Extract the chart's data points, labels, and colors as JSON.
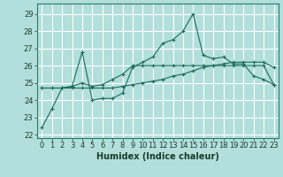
{
  "title": "",
  "xlabel": "Humidex (Indice chaleur)",
  "background_color": "#b2dfdb",
  "line_color": "#1a6b5a",
  "grid_color": "#e8f5f3",
  "xlim": [
    -0.5,
    23.5
  ],
  "ylim": [
    21.8,
    29.6
  ],
  "yticks": [
    22,
    23,
    24,
    25,
    26,
    27,
    28,
    29
  ],
  "xticks": [
    0,
    1,
    2,
    3,
    4,
    5,
    6,
    7,
    8,
    9,
    10,
    11,
    12,
    13,
    14,
    15,
    16,
    17,
    18,
    19,
    20,
    21,
    22,
    23
  ],
  "line1": [
    22.4,
    23.5,
    24.7,
    24.8,
    26.8,
    24.0,
    24.1,
    24.1,
    24.4,
    25.9,
    26.2,
    26.5,
    27.3,
    27.5,
    28.0,
    29.0,
    26.6,
    26.4,
    26.5,
    26.1,
    26.1,
    25.4,
    25.2,
    24.9
  ],
  "line2": [
    24.7,
    24.7,
    24.7,
    24.7,
    24.7,
    24.7,
    24.7,
    24.7,
    24.8,
    24.9,
    25.0,
    25.1,
    25.2,
    25.4,
    25.5,
    25.7,
    25.9,
    26.0,
    26.1,
    26.2,
    26.2,
    26.2,
    26.2,
    25.9
  ],
  "line3": [
    24.7,
    24.7,
    24.7,
    24.8,
    25.0,
    24.8,
    24.9,
    25.2,
    25.5,
    26.0,
    26.0,
    26.0,
    26.0,
    26.0,
    26.0,
    26.0,
    26.0,
    26.0,
    26.0,
    26.0,
    26.0,
    26.0,
    26.0,
    24.9
  ],
  "tick_fontsize": 6,
  "xlabel_fontsize": 7
}
